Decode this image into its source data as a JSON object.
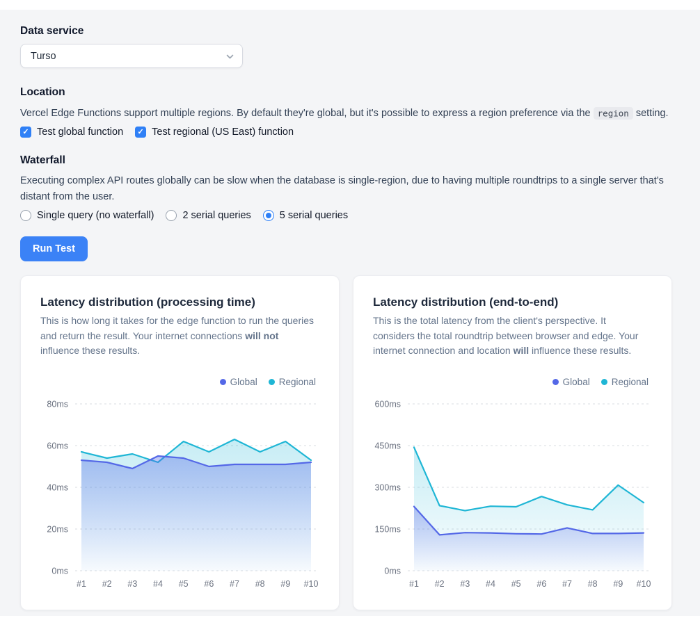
{
  "form": {
    "data_service": {
      "label": "Data service",
      "selected": "Turso"
    },
    "location": {
      "heading": "Location",
      "description_before": "Vercel Edge Functions support multiple regions. By default they're global, but it's possible to express a region preference via the ",
      "description_code": "region",
      "description_after": " setting.",
      "checkboxes": [
        {
          "label": "Test global function",
          "checked": true
        },
        {
          "label": "Test regional (US East) function",
          "checked": true
        }
      ]
    },
    "waterfall": {
      "heading": "Waterfall",
      "description": "Executing complex API routes globally can be slow when the database is single-region, due to having multiple roundtrips to a single server that's distant from the user.",
      "radios": [
        {
          "label": "Single query (no waterfall)",
          "selected": false
        },
        {
          "label": "2 serial queries",
          "selected": false
        },
        {
          "label": "5 serial queries",
          "selected": true
        }
      ]
    },
    "run_button": "Run Test"
  },
  "colors": {
    "global_series": "#5468e7",
    "regional_series": "#1fb6d5",
    "accent_blue": "#2f80f6",
    "gridline": "#d9dce1",
    "axis_text": "#6b7280"
  },
  "chart_data": [
    {
      "type": "area",
      "title": "Latency distribution (processing time)",
      "description_before": "This is how long it takes for the edge function to run the queries and return the result. Your internet connections ",
      "description_bold": "will not",
      "description_after": " influence these results.",
      "categories": [
        "#1",
        "#2",
        "#3",
        "#4",
        "#5",
        "#6",
        "#7",
        "#8",
        "#9",
        "#10"
      ],
      "series": [
        {
          "name": "Global",
          "color": "#5468e7",
          "values": [
            53,
            52,
            49,
            55,
            54,
            50,
            51,
            51,
            51,
            52
          ]
        },
        {
          "name": "Regional",
          "color": "#1fb6d5",
          "values": [
            57,
            54,
            56,
            52,
            62,
            57,
            63,
            57,
            62,
            53
          ]
        }
      ],
      "xlabel": "",
      "ylabel": "",
      "ylim": [
        0,
        80
      ],
      "yticks": [
        {
          "value": 0,
          "label": "0ms"
        },
        {
          "value": 20,
          "label": "20ms"
        },
        {
          "value": 40,
          "label": "40ms"
        },
        {
          "value": 60,
          "label": "60ms"
        },
        {
          "value": 80,
          "label": "80ms"
        }
      ],
      "grid": "horizontal-dashed",
      "legend_position": "top-right"
    },
    {
      "type": "area",
      "title": "Latency distribution (end-to-end)",
      "description_before": "This is the total latency from the client's perspective. It considers the total roundtrip between browser and edge. Your internet connection and location ",
      "description_bold": "will",
      "description_after": " influence these results.",
      "categories": [
        "#1",
        "#2",
        "#3",
        "#4",
        "#5",
        "#6",
        "#7",
        "#8",
        "#9",
        "#10"
      ],
      "series": [
        {
          "name": "Global",
          "color": "#5468e7",
          "values": [
            231,
            129,
            137,
            136,
            133,
            132,
            154,
            134,
            134,
            136
          ]
        },
        {
          "name": "Regional",
          "color": "#1fb6d5",
          "values": [
            444,
            234,
            216,
            232,
            230,
            267,
            237,
            219,
            308,
            245
          ]
        }
      ],
      "xlabel": "",
      "ylabel": "",
      "ylim": [
        0,
        600
      ],
      "yticks": [
        {
          "value": 0,
          "label": "0ms"
        },
        {
          "value": 150,
          "label": "150ms"
        },
        {
          "value": 300,
          "label": "300ms"
        },
        {
          "value": 450,
          "label": "450ms"
        },
        {
          "value": 600,
          "label": "600ms"
        }
      ],
      "grid": "horizontal-dashed",
      "legend_position": "top-right"
    }
  ]
}
